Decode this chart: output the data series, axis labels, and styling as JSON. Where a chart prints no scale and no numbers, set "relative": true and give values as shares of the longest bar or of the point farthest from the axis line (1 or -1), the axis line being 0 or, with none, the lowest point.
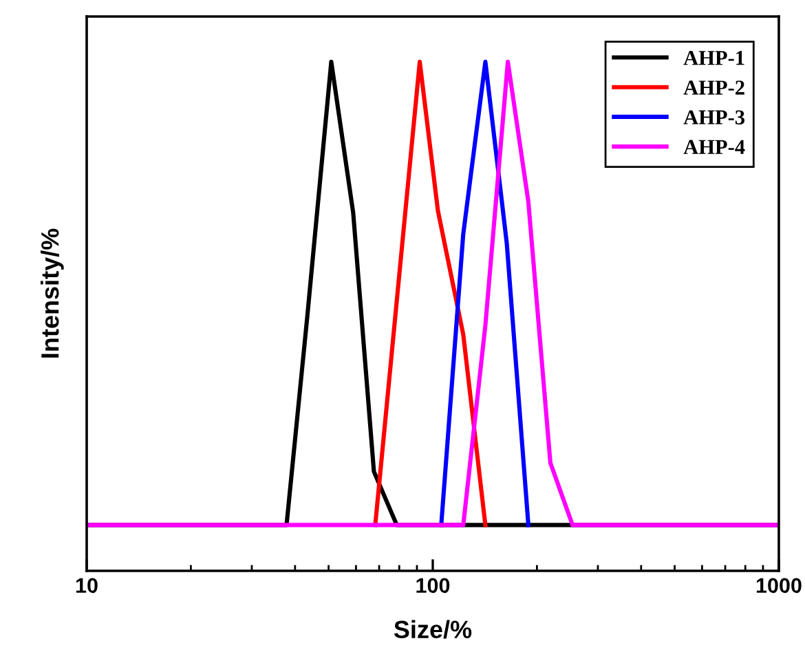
{
  "chart_data": {
    "type": "line",
    "xlabel": "Size/%",
    "ylabel": "Intensity/%",
    "relative": true,
    "log": "x",
    "xlim": [
      10,
      1000
    ],
    "xticks": [
      10,
      100,
      1000
    ],
    "legend": "top right",
    "grid": false,
    "marker": "none",
    "line_style": "solid",
    "series": [
      {
        "name": "AHP-1",
        "color": "#000000",
        "x": [
          10,
          37.8,
          43.4,
          50.9,
          58.9,
          67.6,
          78.7,
          1000
        ],
        "values": [
          0.09,
          0.09,
          0.5,
          1,
          0.703,
          0.195,
          0.09,
          0.09
        ]
      },
      {
        "name": "AHP-2",
        "color": "#ff0000",
        "x": [
          68.2,
          91.7,
          103.5,
          122.5,
          141.9
        ],
        "values": [
          0.09,
          1,
          0.707,
          0.464,
          0.09
        ]
      },
      {
        "name": "AHP-3",
        "color": "#0000ff",
        "x": [
          105.8,
          122.5,
          141.9,
          163.6,
          188.9
        ],
        "values": [
          0.09,
          0.662,
          1,
          0.644,
          0.09
        ]
      },
      {
        "name": "AHP-4",
        "color": "#ff00ff",
        "x": [
          10,
          122.5,
          141.9,
          164.8,
          188.9,
          218.7,
          253.4,
          1000
        ],
        "values": [
          0.09,
          0.09,
          0.482,
          1,
          0.725,
          0.212,
          0.09,
          0.09
        ]
      }
    ]
  }
}
